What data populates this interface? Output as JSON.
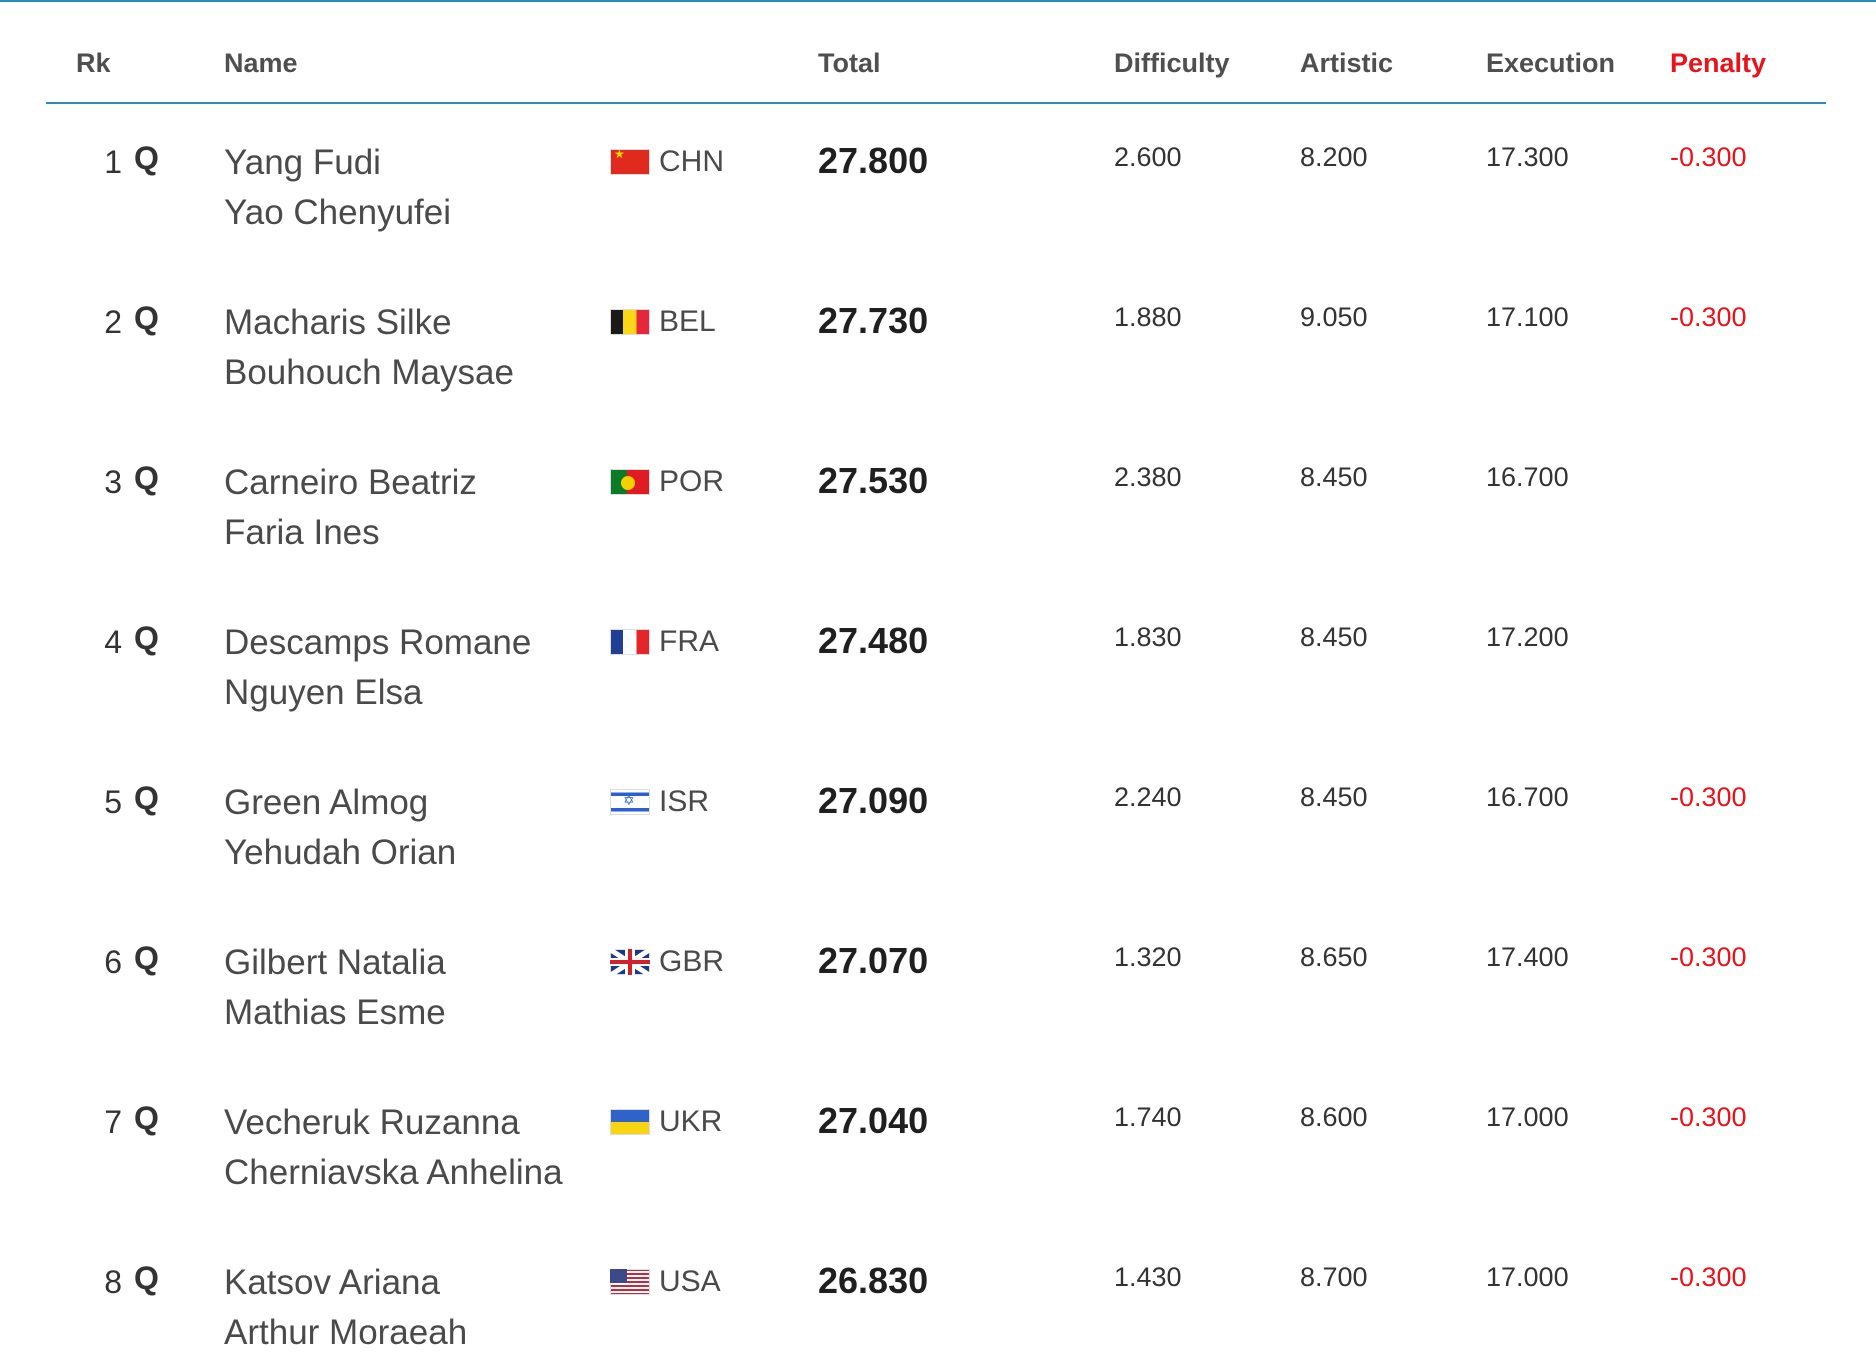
{
  "headers": {
    "rank": "Rk",
    "name": "Name",
    "total": "Total",
    "difficulty": "Difficulty",
    "artistic": "Artistic",
    "execution": "Execution",
    "penalty": "Penalty"
  },
  "colors": {
    "accent_rule": "#2a8cb5",
    "penalty": "#e8141c"
  },
  "rows": [
    {
      "rank": "1",
      "q": "Q",
      "name1": "Yang Fudi",
      "name2": "Yao Chenyufei",
      "country": "CHN",
      "flag_icon": "flag-china-icon",
      "total": "27.800",
      "difficulty": "2.600",
      "artistic": "8.200",
      "execution": "17.300",
      "penalty": "-0.300"
    },
    {
      "rank": "2",
      "q": "Q",
      "name1": "Macharis Silke",
      "name2": "Bouhouch Maysae",
      "country": "BEL",
      "flag_icon": "flag-belgium-icon",
      "total": "27.730",
      "difficulty": "1.880",
      "artistic": "9.050",
      "execution": "17.100",
      "penalty": "-0.300"
    },
    {
      "rank": "3",
      "q": "Q",
      "name1": "Carneiro Beatriz",
      "name2": "Faria Ines",
      "country": "POR",
      "flag_icon": "flag-portugal-icon",
      "total": "27.530",
      "difficulty": "2.380",
      "artistic": "8.450",
      "execution": "16.700",
      "penalty": ""
    },
    {
      "rank": "4",
      "q": "Q",
      "name1": "Descamps Romane",
      "name2": "Nguyen Elsa",
      "country": "FRA",
      "flag_icon": "flag-france-icon",
      "total": "27.480",
      "difficulty": "1.830",
      "artistic": "8.450",
      "execution": "17.200",
      "penalty": ""
    },
    {
      "rank": "5",
      "q": "Q",
      "name1": "Green Almog",
      "name2": "Yehudah Orian",
      "country": "ISR",
      "flag_icon": "flag-israel-icon",
      "total": "27.090",
      "difficulty": "2.240",
      "artistic": "8.450",
      "execution": "16.700",
      "penalty": "-0.300"
    },
    {
      "rank": "6",
      "q": "Q",
      "name1": "Gilbert Natalia",
      "name2": "Mathias Esme",
      "country": "GBR",
      "flag_icon": "flag-great-britain-icon",
      "total": "27.070",
      "difficulty": "1.320",
      "artistic": "8.650",
      "execution": "17.400",
      "penalty": "-0.300"
    },
    {
      "rank": "7",
      "q": "Q",
      "name1": "Vecheruk Ruzanna",
      "name2": "Cherniavska Anhelina",
      "country": "UKR",
      "flag_icon": "flag-ukraine-icon",
      "total": "27.040",
      "difficulty": "1.740",
      "artistic": "8.600",
      "execution": "17.000",
      "penalty": "-0.300"
    },
    {
      "rank": "8",
      "q": "Q",
      "name1": "Katsov Ariana",
      "name2": "Arthur Moraeah",
      "country": "USA",
      "flag_icon": "flag-usa-icon",
      "total": "26.830",
      "difficulty": "1.430",
      "artistic": "8.700",
      "execution": "17.000",
      "penalty": "-0.300"
    }
  ]
}
